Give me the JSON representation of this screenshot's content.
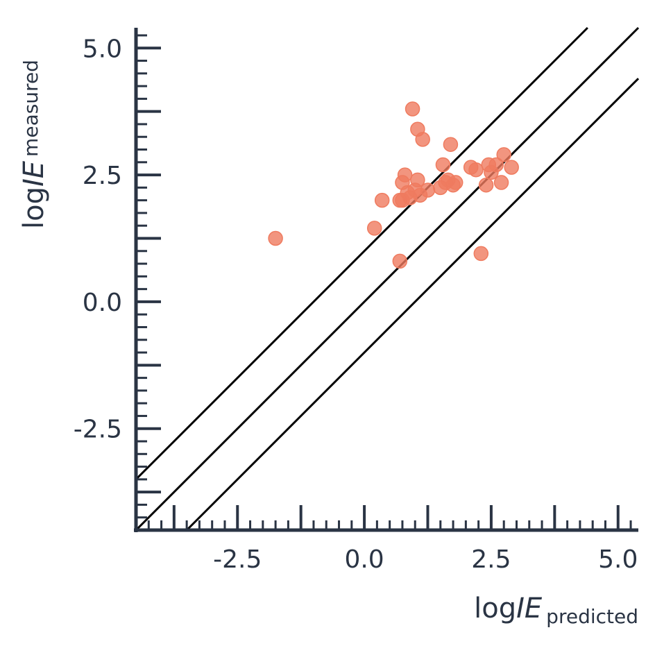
{
  "chart_data": {
    "type": "scatter",
    "xlabel": {
      "prefix": "log",
      "var": "IE",
      "sub": "predicted"
    },
    "ylabel": {
      "prefix": "log",
      "var": "IE",
      "sub": "measured"
    },
    "xlim": [
      -4.5,
      5.4
    ],
    "ylim": [
      -4.5,
      5.4
    ],
    "x_ticks": [
      -2.5,
      0.0,
      2.5,
      5.0
    ],
    "y_ticks": [
      -2.5,
      0.0,
      2.5,
      5.0
    ],
    "x_tick_labels": [
      "-2.5",
      "0.0",
      "2.5",
      "5.0"
    ],
    "y_tick_labels": [
      "-2.5",
      "0.0",
      "2.5",
      "5.0"
    ],
    "grid": false,
    "point_color": "#ef7b5f",
    "axis_color": "#2a3444",
    "reference_lines": [
      {
        "slope": 1,
        "intercept": 1
      },
      {
        "slope": 1,
        "intercept": 0
      },
      {
        "slope": 1,
        "intercept": -1
      }
    ],
    "points": [
      {
        "x": -1.75,
        "y": 1.25
      },
      {
        "x": 0.2,
        "y": 1.45
      },
      {
        "x": 0.35,
        "y": 2.0
      },
      {
        "x": 0.7,
        "y": 0.8
      },
      {
        "x": 0.7,
        "y": 2.0
      },
      {
        "x": 0.75,
        "y": 2.0
      },
      {
        "x": 0.75,
        "y": 2.35
      },
      {
        "x": 0.8,
        "y": 2.5
      },
      {
        "x": 0.85,
        "y": 2.15
      },
      {
        "x": 0.9,
        "y": 2.05
      },
      {
        "x": 0.95,
        "y": 3.8
      },
      {
        "x": 1.0,
        "y": 2.2
      },
      {
        "x": 1.05,
        "y": 3.4
      },
      {
        "x": 1.05,
        "y": 2.4
      },
      {
        "x": 1.1,
        "y": 2.1
      },
      {
        "x": 1.15,
        "y": 3.2
      },
      {
        "x": 1.25,
        "y": 2.2
      },
      {
        "x": 1.5,
        "y": 2.25
      },
      {
        "x": 1.55,
        "y": 2.7
      },
      {
        "x": 1.6,
        "y": 2.35
      },
      {
        "x": 1.65,
        "y": 2.4
      },
      {
        "x": 1.7,
        "y": 3.1
      },
      {
        "x": 1.75,
        "y": 2.3
      },
      {
        "x": 1.8,
        "y": 2.35
      },
      {
        "x": 2.1,
        "y": 2.65
      },
      {
        "x": 2.2,
        "y": 2.6
      },
      {
        "x": 2.3,
        "y": 0.95
      },
      {
        "x": 2.4,
        "y": 2.3
      },
      {
        "x": 2.45,
        "y": 2.7
      },
      {
        "x": 2.5,
        "y": 2.55
      },
      {
        "x": 2.6,
        "y": 2.7
      },
      {
        "x": 2.7,
        "y": 2.35
      },
      {
        "x": 2.75,
        "y": 2.9
      },
      {
        "x": 2.9,
        "y": 2.65
      }
    ]
  }
}
